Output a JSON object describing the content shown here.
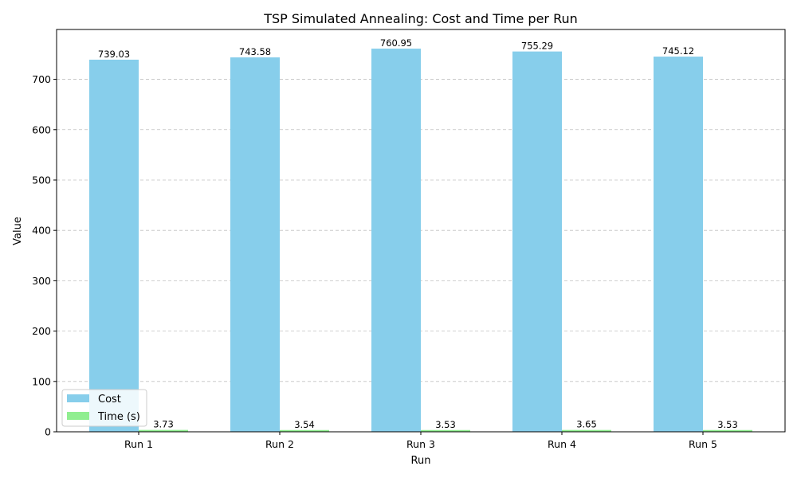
{
  "chart_data": {
    "type": "bar",
    "title": "TSP Simulated Annealing: Cost and Time per Run",
    "xlabel": "Run",
    "ylabel": "Value",
    "categories": [
      "Run 1",
      "Run 2",
      "Run 3",
      "Run 4",
      "Run 5"
    ],
    "series": [
      {
        "name": "Cost",
        "color": "#87CEEB",
        "values": [
          739.03,
          743.58,
          760.95,
          755.29,
          745.12
        ],
        "labels": [
          "739.03",
          "743.58",
          "760.95",
          "755.29",
          "745.12"
        ]
      },
      {
        "name": "Time (s)",
        "color": "#90EE90",
        "values": [
          3.73,
          3.54,
          3.53,
          3.65,
          3.53
        ],
        "labels": [
          "3.73",
          "3.54",
          "3.53",
          "3.65",
          "3.53"
        ]
      }
    ],
    "ylim": [
      0,
      799
    ],
    "yticks": [
      0,
      100,
      200,
      300,
      400,
      500,
      600,
      700
    ],
    "grid": "y-dashed",
    "legend_position": "lower-left"
  }
}
